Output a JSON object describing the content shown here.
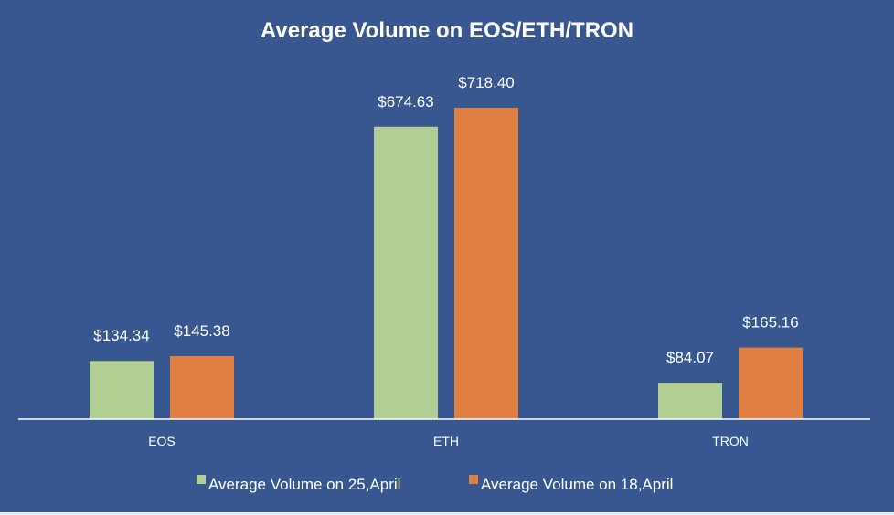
{
  "chart_data": {
    "type": "bar",
    "title": "Average Volume on EOS/ETH/TRON",
    "xlabel": "",
    "ylabel": "",
    "categories": [
      "EOS",
      "ETH",
      "TRON"
    ],
    "series": [
      {
        "name": "Average Volume on 25,April",
        "values": [
          134.34,
          674.63,
          84.07
        ],
        "labels": [
          "$134.34",
          "$674.63",
          "$84.07"
        ],
        "color": "#b1cf95"
      },
      {
        "name": "Average Volume on 18,April",
        "values": [
          145.38,
          718.4,
          165.16
        ],
        "labels": [
          "$145.38",
          "$718.40",
          "$165.16"
        ],
        "color": "#e07f42"
      }
    ],
    "ylim": [
      0,
      718.4
    ],
    "grid": false,
    "legend_position": "bottom"
  },
  "colors": {
    "background": "#385690",
    "axis": "#ffffff",
    "text": "#ffffff",
    "bottom_edge": "#e9e9ee"
  }
}
